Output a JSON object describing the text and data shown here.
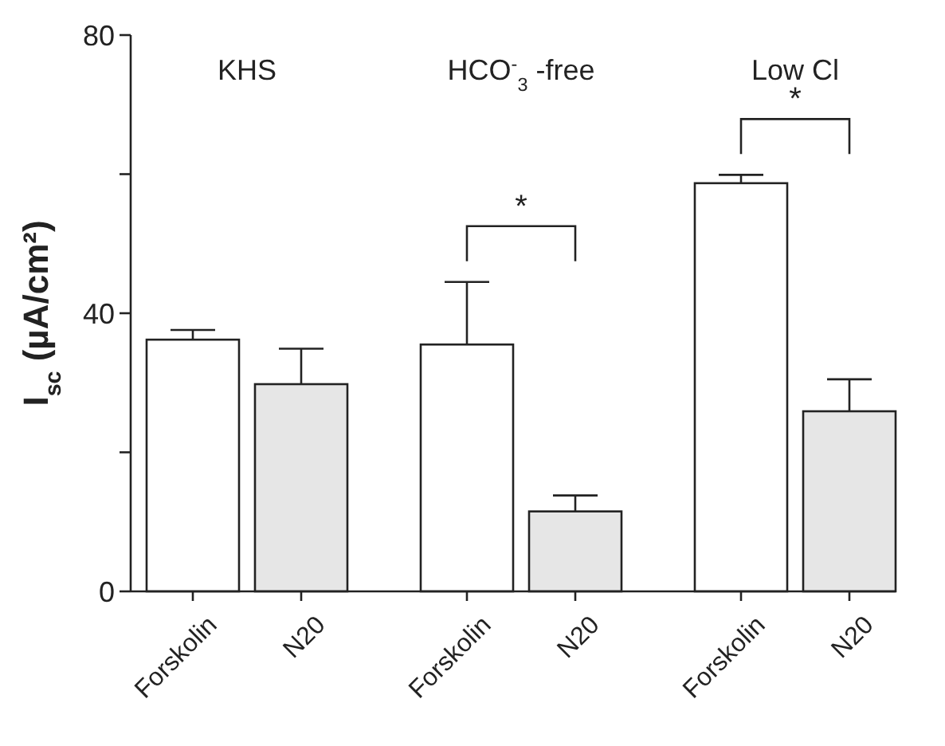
{
  "chart_data": {
    "type": "bar",
    "ylabel": "I$_{sc}$ (µA/cm²)",
    "categories": [
      "Forskolin",
      "N20",
      "Forskolin",
      "N20",
      "Forskolin",
      "N20"
    ],
    "values": [
      36.2,
      29.8,
      35.5,
      11.5,
      58.7,
      25.9
    ],
    "colors": [
      "#ffffff",
      "#e6e6e6",
      "#ffffff",
      "#e6e6e6",
      "#ffffff",
      "#e6e6e6"
    ],
    "errors": [
      [
        36.2,
        37.6
      ],
      [
        29.8,
        34.9
      ],
      [
        35.5,
        44.5
      ],
      [
        11.5,
        13.8
      ],
      [
        58.7,
        59.9
      ],
      [
        25.9,
        30.5
      ]
    ],
    "ylim": [
      0,
      80
    ],
    "yticks": [
      0,
      {
        "value": 20,
        "label": null
      },
      40,
      {
        "value": 60,
        "label": null
      },
      80
    ],
    "annotations": [
      "KHS",
      "HCO$^{-}$$_{3}$ -free",
      "Low Cl",
      "*",
      "*"
    ]
  }
}
